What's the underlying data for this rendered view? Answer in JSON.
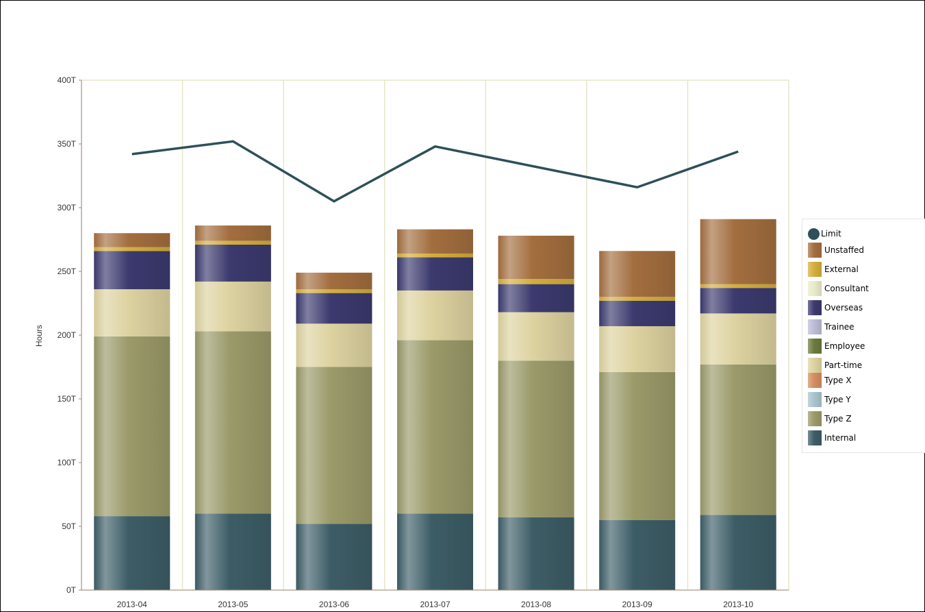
{
  "chart_data": {
    "type": "bar",
    "stacked": true,
    "ylabel": "Hours",
    "xlabel": "",
    "ylim": [
      0,
      400
    ],
    "yticks": [
      "0T",
      "50T",
      "100T",
      "150T",
      "200T",
      "250T",
      "300T",
      "350T",
      "400T"
    ],
    "categories": [
      "2013-04",
      "2013-05",
      "2013-06",
      "2013-07",
      "2013-08",
      "2013-09",
      "2013-10"
    ],
    "grid": "vertical",
    "legend_position": "right",
    "series": [
      {
        "name": "Internal",
        "color": "#3d5d66",
        "values": [
          58,
          60,
          52,
          60,
          57,
          55,
          59
        ]
      },
      {
        "name": "Type Z",
        "color": "#9a9a6a",
        "values": [
          141,
          143,
          123,
          136,
          123,
          116,
          118
        ]
      },
      {
        "name": "Type Y",
        "color": "#a9c3cc",
        "values": [
          0,
          0,
          0,
          0,
          0,
          0,
          0
        ]
      },
      {
        "name": "Type X",
        "color": "#d38d5f",
        "values": [
          0,
          0,
          0,
          0,
          0,
          0,
          0
        ]
      },
      {
        "name": "Part-time",
        "color": "#ddd2a0",
        "values": [
          37,
          39,
          34,
          39,
          38,
          36,
          40
        ]
      },
      {
        "name": "Employee",
        "color": "#6b7a3d",
        "values": [
          0,
          0,
          0,
          0,
          0,
          0,
          0
        ]
      },
      {
        "name": "Trainee",
        "color": "#bcbbd6",
        "values": [
          0,
          0,
          0,
          0,
          0,
          0,
          0
        ]
      },
      {
        "name": "Overseas",
        "color": "#3c3a6e",
        "values": [
          30,
          29,
          24,
          26,
          22,
          20,
          20
        ]
      },
      {
        "name": "Consultant",
        "color": "#e7ecc8",
        "values": [
          0,
          0,
          0,
          0,
          0,
          0,
          0
        ]
      },
      {
        "name": "External",
        "color": "#d4ae3c",
        "values": [
          3,
          3,
          3,
          3,
          4,
          3,
          3
        ]
      },
      {
        "name": "Unstaffed",
        "color": "#a36e3f",
        "values": [
          11,
          12,
          13,
          19,
          34,
          36,
          51
        ]
      }
    ],
    "line_series": {
      "name": "Limit",
      "color": "#2d5059",
      "values": [
        342,
        352,
        305,
        348,
        332,
        316,
        344
      ]
    }
  },
  "legend": {
    "items": [
      {
        "label": "Limit",
        "kind": "line",
        "color": "#2d5059"
      },
      {
        "label": "Unstaffed",
        "kind": "bar",
        "color": "#a36e3f"
      },
      {
        "label": "External",
        "kind": "bar",
        "color": "#d4ae3c"
      },
      {
        "label": "Consultant",
        "kind": "bar",
        "color": "#e7ecc8"
      },
      {
        "label": "Overseas",
        "kind": "bar",
        "color": "#3c3a6e"
      },
      {
        "label": "Trainee",
        "kind": "bar",
        "color": "#bcbbd6"
      },
      {
        "label": "Employee",
        "kind": "bar",
        "color": "#6b7a3d"
      },
      {
        "label": "Part-time",
        "kind": "bar",
        "color": "#ddd2a0"
      },
      {
        "label": "Type X",
        "kind": "bar",
        "color": "#d38d5f"
      },
      {
        "label": "Type Y",
        "kind": "bar",
        "color": "#a9c3cc"
      },
      {
        "label": "Type Z",
        "kind": "bar",
        "color": "#9a9a6a"
      },
      {
        "label": "Internal",
        "kind": "bar",
        "color": "#3d5d66"
      }
    ]
  }
}
